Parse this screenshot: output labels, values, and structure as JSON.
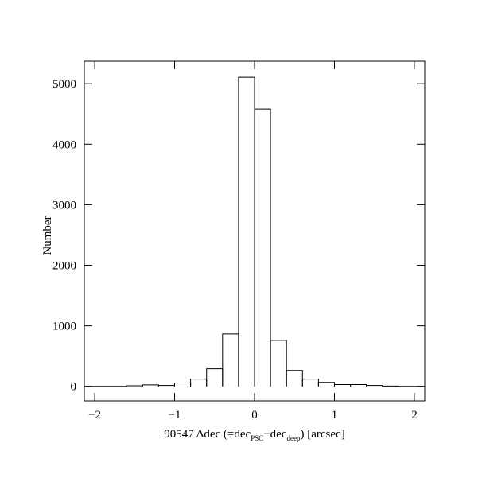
{
  "chart_data": {
    "type": "histogram",
    "xlabel": [
      "90547 Δdec (=dec",
      "PSC",
      "−dec",
      "deep",
      ") [arcsec]"
    ],
    "ylabel": "Number",
    "bins": [
      -2.2,
      -2.0,
      -1.8,
      -1.6,
      -1.4,
      -1.2,
      -1.0,
      -0.8,
      -0.6,
      -0.4,
      -0.2,
      0,
      0.2,
      0.4,
      0.6,
      0.8,
      1.0,
      1.2,
      1.4,
      1.6,
      1.8,
      2.0,
      2.2
    ],
    "values": [
      0,
      0,
      0,
      10,
      25,
      15,
      55,
      120,
      290,
      866,
      5105,
      4580,
      760,
      262,
      120,
      65,
      30,
      30,
      15,
      5,
      0,
      0
    ],
    "color": "#000000",
    "xlim": [
      -2.13,
      2.13
    ],
    "ylim": [
      -240,
      5370
    ],
    "xticks": [
      {
        "value": -2,
        "label": "−2"
      },
      {
        "value": -1,
        "label": "−1"
      },
      0,
      1,
      2
    ],
    "yticks": [
      0,
      1000,
      2000,
      3000,
      4000,
      5000
    ]
  }
}
